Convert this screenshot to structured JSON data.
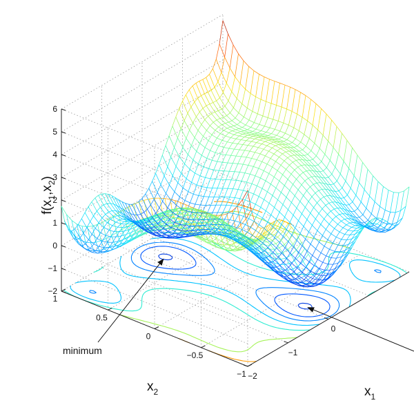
{
  "chart_data": {
    "type": "surface",
    "xlabel_main": "x",
    "xlabel_sub": "1",
    "ylabel_main": "x",
    "ylabel_sub": "2",
    "zlabel_main": "f(x",
    "zlabel_sub1": "1",
    "zlabel_mid": ",x",
    "zlabel_sub2": "2",
    "zlabel_close": ")",
    "xlim": [
      -2,
      2
    ],
    "ylim": [
      -1,
      1
    ],
    "zlim": [
      -2,
      6
    ],
    "x_ticks_visible": [
      "−2",
      "−1",
      "0"
    ],
    "y_ticks": [
      "−1",
      "−0.5",
      "0",
      "0.5",
      "1"
    ],
    "z_ticks": [
      "−2",
      "−1",
      "0",
      "1",
      "2",
      "3",
      "4",
      "5",
      "6"
    ],
    "grid": true,
    "colormap": "jet",
    "contour_projection": true,
    "annotation_label": "minimum",
    "annotation_target": {
      "x": -0.09,
      "y": 0.71
    },
    "second_minimum": {
      "x": 0.09,
      "y": -0.71
    },
    "mesh_colors": [
      "#00008f",
      "#0050ff",
      "#00dfff",
      "#70ff8f",
      "#ffdf00",
      "#ff5000",
      "#8f0000"
    ]
  }
}
